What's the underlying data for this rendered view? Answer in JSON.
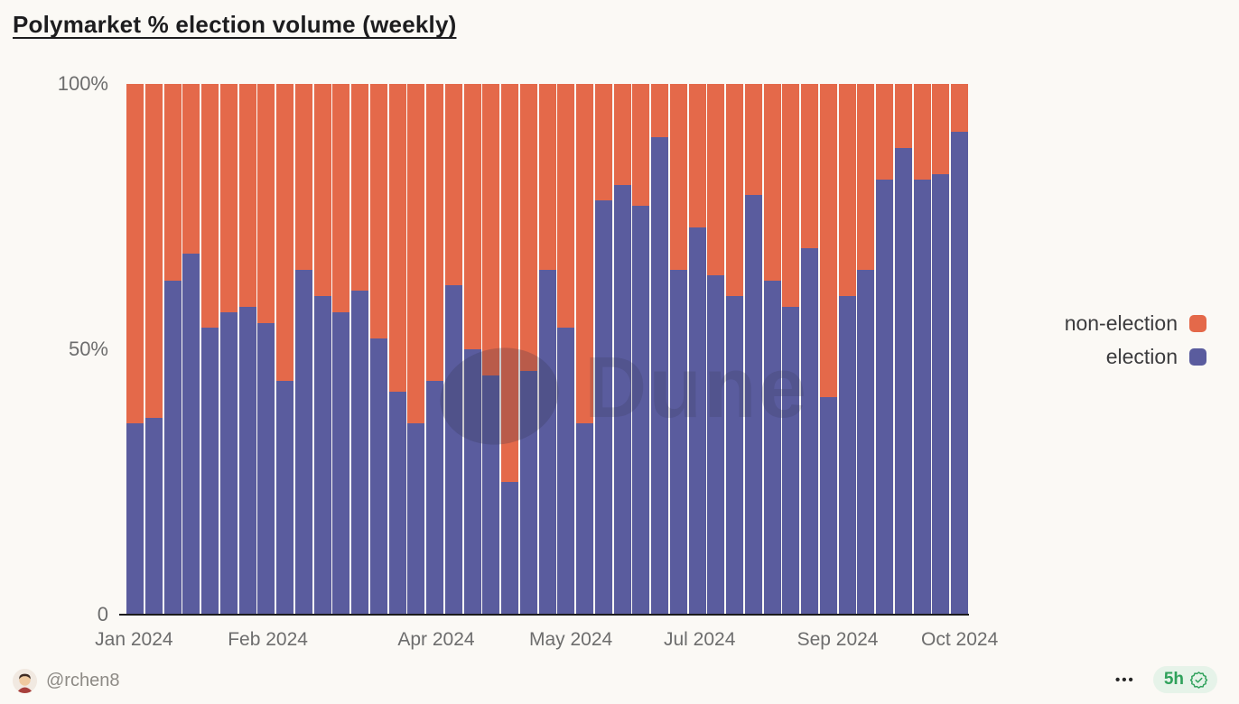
{
  "header": {
    "title": "Polymarket % election volume (weekly)"
  },
  "chart_data": {
    "type": "bar",
    "stacked": true,
    "orientation": "vertical",
    "title": "Polymarket % election volume (weekly)",
    "unit": "percent",
    "ylim": [
      0,
      100
    ],
    "grid": false,
    "categories_note": "45 weekly bars, Jan 2024 through early Nov 2024",
    "y_ticks": [
      {
        "label": "100%",
        "pos_pct": 0
      },
      {
        "label": "50%",
        "pos_pct": 50
      },
      {
        "label": "0",
        "pos_pct": 100
      }
    ],
    "x_ticks": [
      {
        "label": "Jan 2024",
        "pos_pct": 0.9
      },
      {
        "label": "Feb 2024",
        "pos_pct": 16.8
      },
      {
        "label": "Apr 2024",
        "pos_pct": 36.8
      },
      {
        "label": "May 2024",
        "pos_pct": 52.8
      },
      {
        "label": "Jul 2024",
        "pos_pct": 68.1
      },
      {
        "label": "Sep 2024",
        "pos_pct": 84.5
      },
      {
        "label": "Oct 2024",
        "pos_pct": 99.0
      }
    ],
    "series": [
      {
        "name": "election",
        "color": "#5A5C9E",
        "values": [
          36,
          37,
          63,
          68,
          54,
          57,
          58,
          55,
          44,
          65,
          60,
          57,
          61,
          52,
          42,
          36,
          44,
          62,
          50,
          45,
          25,
          46,
          65,
          54,
          36,
          78,
          81,
          77,
          90,
          65,
          73,
          64,
          60,
          79,
          63,
          58,
          69,
          41,
          60,
          65,
          82,
          88,
          82,
          83,
          91
        ]
      },
      {
        "name": "non-election",
        "color": "#E4694A",
        "values": [
          64,
          63,
          37,
          32,
          46,
          43,
          42,
          45,
          56,
          35,
          40,
          43,
          39,
          48,
          58,
          64,
          56,
          38,
          50,
          55,
          75,
          54,
          35,
          46,
          64,
          22,
          19,
          23,
          10,
          35,
          27,
          36,
          40,
          21,
          37,
          42,
          31,
          59,
          40,
          35,
          18,
          12,
          18,
          17,
          9
        ]
      }
    ],
    "legend": [
      {
        "label": "non-election",
        "color": "#E4694A"
      },
      {
        "label": "election",
        "color": "#5A5C9E"
      }
    ],
    "legend_position": "right"
  },
  "watermark": {
    "text": "Dune"
  },
  "footer": {
    "handle": "@rchen8",
    "menu_label": "•••",
    "badge": {
      "time": "5h",
      "icon": "verified-check-icon",
      "green": "#2FA15B",
      "bg": "#E6F3E9"
    }
  }
}
